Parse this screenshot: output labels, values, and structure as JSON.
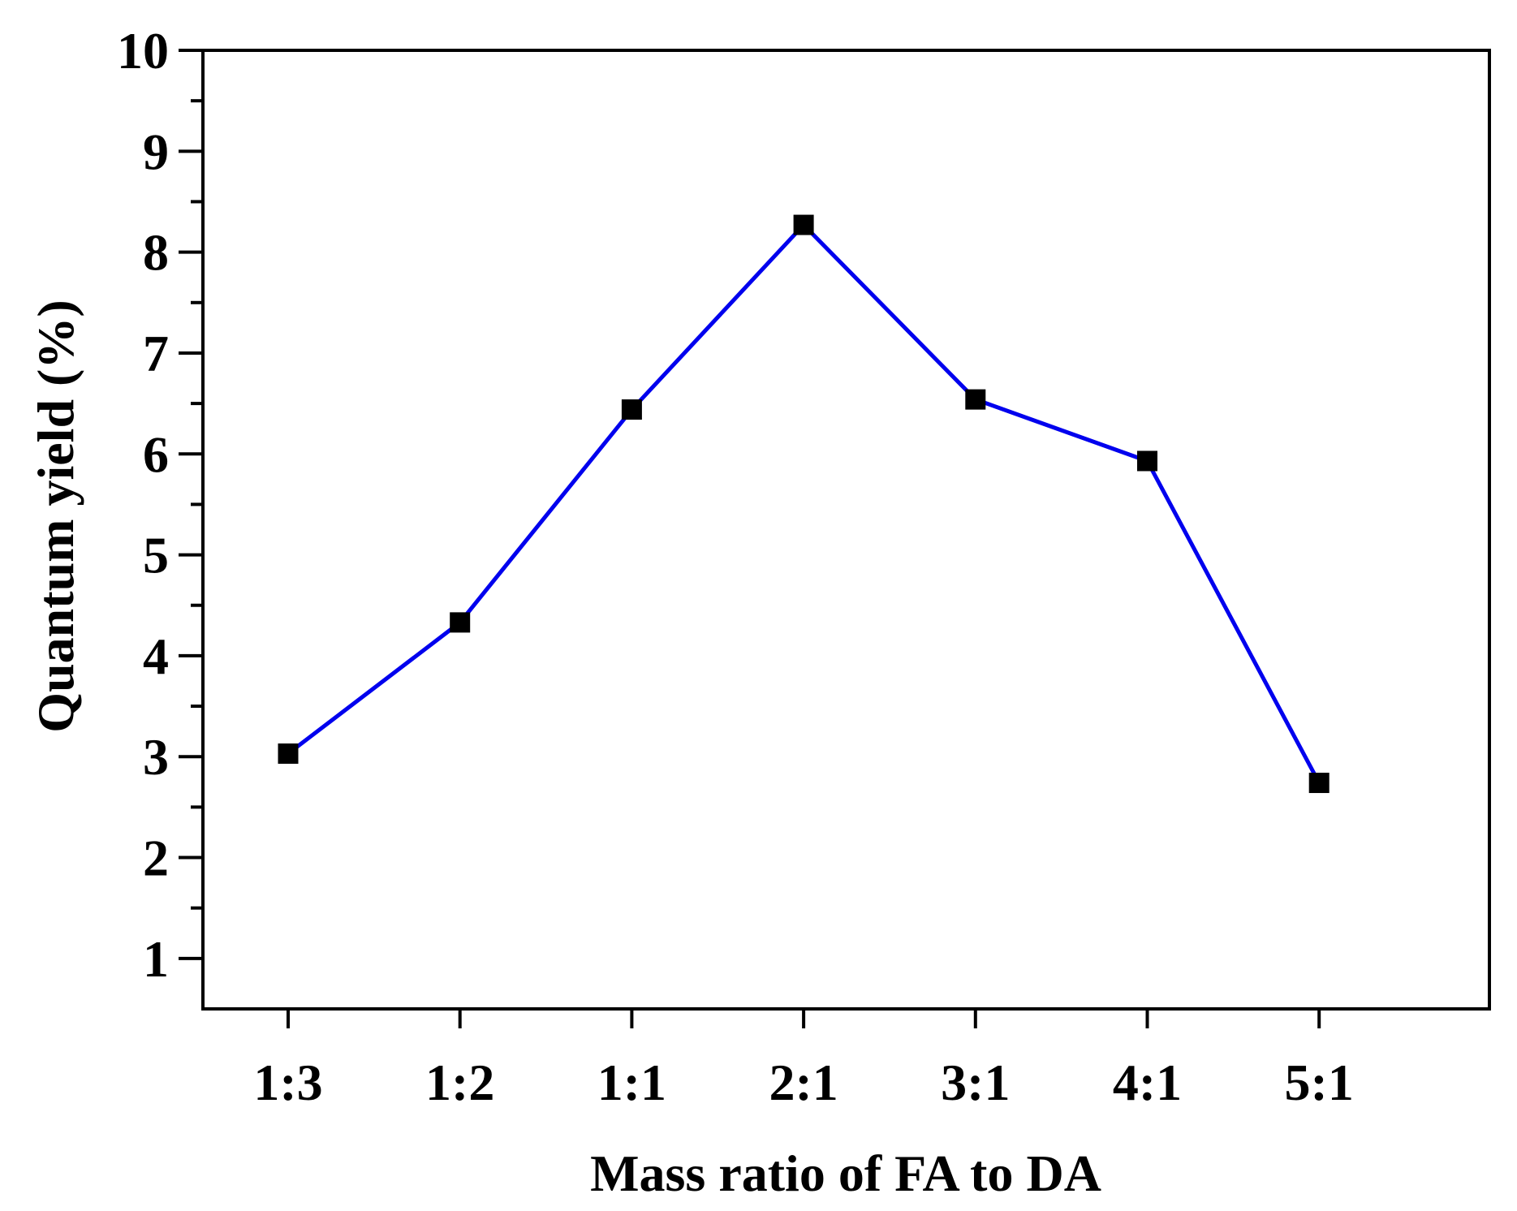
{
  "chart_data": {
    "type": "line",
    "title": "",
    "xlabel": "Mass ratio of FA to DA",
    "ylabel": "Quantum yield (%)",
    "categories": [
      "1:3",
      "1:2",
      "1:1",
      "2:1",
      "3:1",
      "4:1",
      "5:1"
    ],
    "series": [
      {
        "name": "Quantum yield",
        "values": [
          3.03,
          4.33,
          6.44,
          8.27,
          6.54,
          5.93,
          2.74
        ]
      }
    ],
    "ylim": [
      0.5,
      10
    ],
    "yticks_major": [
      "1",
      "2",
      "3",
      "4",
      "5",
      "6",
      "7",
      "8",
      "9",
      "10"
    ],
    "grid": false,
    "legend": "none",
    "colors": {
      "line": "#0000ee",
      "marker": "#000000",
      "axis": "#000000"
    }
  }
}
